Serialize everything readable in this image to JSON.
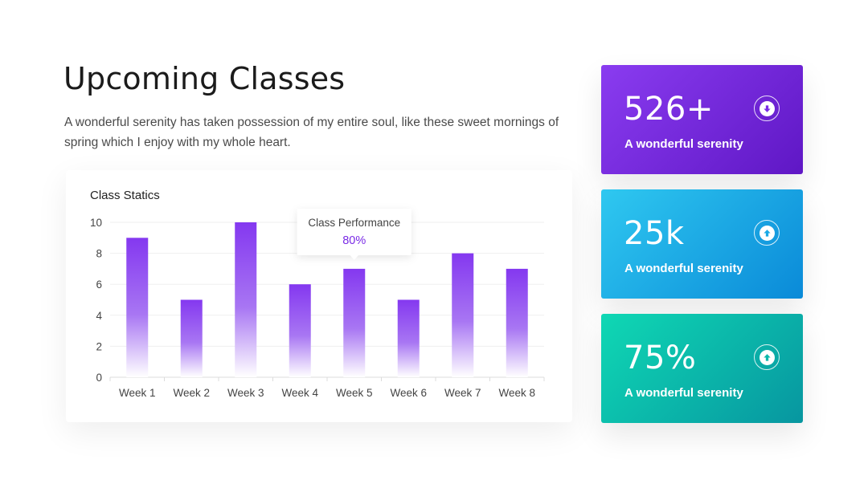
{
  "page": {
    "title": "Upcoming Classes",
    "description": "A wonderful serenity has taken possession of my entire soul, like these sweet mornings of spring which I enjoy with my whole heart."
  },
  "chart_data": {
    "type": "bar",
    "title": "Class Statics",
    "categories": [
      "Week 1",
      "Week 2",
      "Week 3",
      "Week 4",
      "Week 5",
      "Week 6",
      "Week 7",
      "Week 8"
    ],
    "values": [
      9,
      5,
      10,
      6,
      7,
      5,
      8,
      7
    ],
    "ylim": [
      0,
      10
    ],
    "yticks": [
      0,
      2,
      4,
      6,
      8,
      10
    ],
    "grid": true,
    "bar_color_top": "#8438f0",
    "bar_color_bottom": "#ffffff",
    "tooltip": {
      "label": "Class Performance",
      "value": "80%",
      "category": "Week 5"
    }
  },
  "stats": [
    {
      "value": "526+",
      "label": "A wonderful serenity",
      "icon": "arrow-down-icon",
      "color_start": "#8a3cf0",
      "color_end": "#5f17c5",
      "icon_color": "#7a2be6"
    },
    {
      "value": "25k",
      "label": "A wonderful serenity",
      "icon": "arrow-up-icon",
      "color_start": "#2fc8f0",
      "color_end": "#0a8ad8",
      "icon_color": "#1aa9e6"
    },
    {
      "value": "75%",
      "label": "A wonderful serenity",
      "icon": "arrow-up-icon",
      "color_start": "#0fd8b4",
      "color_end": "#0796a0",
      "icon_color": "#0bb8ab"
    }
  ]
}
